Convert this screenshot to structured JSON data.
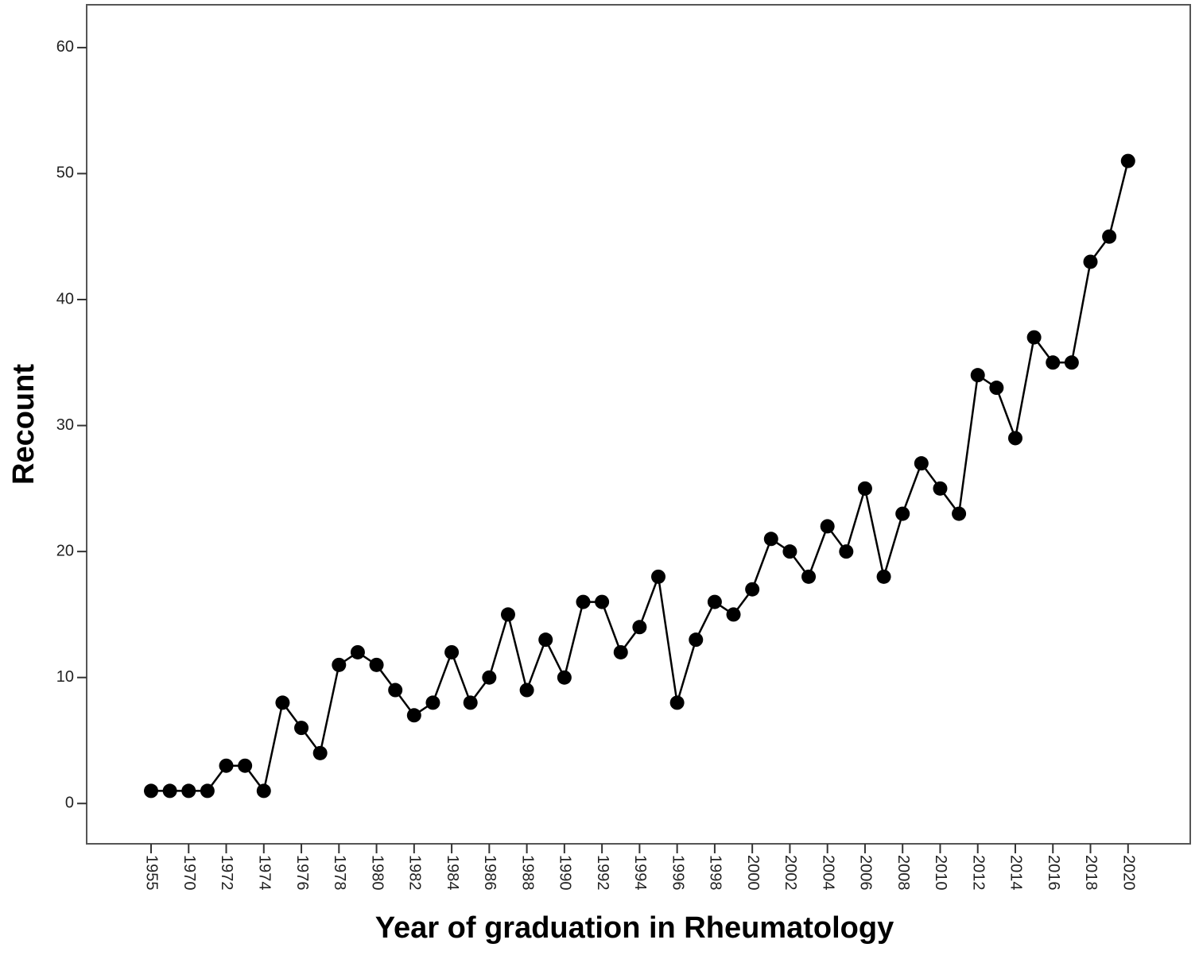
{
  "chart_data": {
    "type": "line",
    "x_label": "Year of graduation in Rheumatology",
    "y_label": "Recount",
    "categories": [
      "1955",
      null,
      "1970",
      null,
      "1972",
      null,
      "1974",
      null,
      "1976",
      null,
      "1978",
      null,
      "1980",
      null,
      "1982",
      null,
      "1984",
      null,
      "1986",
      null,
      "1988",
      null,
      "1990",
      null,
      "1992",
      null,
      "1994",
      null,
      "1996",
      null,
      "1998",
      null,
      "2000",
      null,
      "2002",
      null,
      "2004",
      null,
      "2006",
      null,
      "2008",
      null,
      "2010",
      null,
      "2012",
      null,
      "2014",
      null,
      "2016",
      null,
      "2018",
      null,
      "2020"
    ],
    "values": [
      1,
      1,
      1,
      1,
      3,
      3,
      1,
      8,
      6,
      4,
      11,
      12,
      11,
      9,
      7,
      8,
      12,
      8,
      10,
      15,
      9,
      13,
      10,
      16,
      16,
      12,
      14,
      18,
      8,
      13,
      16,
      15,
      17,
      21,
      20,
      18,
      22,
      20,
      25,
      18,
      23,
      27,
      25,
      23,
      34,
      33,
      29,
      37,
      35,
      35,
      43,
      45,
      51
    ],
    "color": "#000000",
    "ylim": [
      -3.2,
      63.4
    ],
    "yticks": [
      0,
      10,
      20,
      30,
      40,
      50,
      60
    ]
  }
}
